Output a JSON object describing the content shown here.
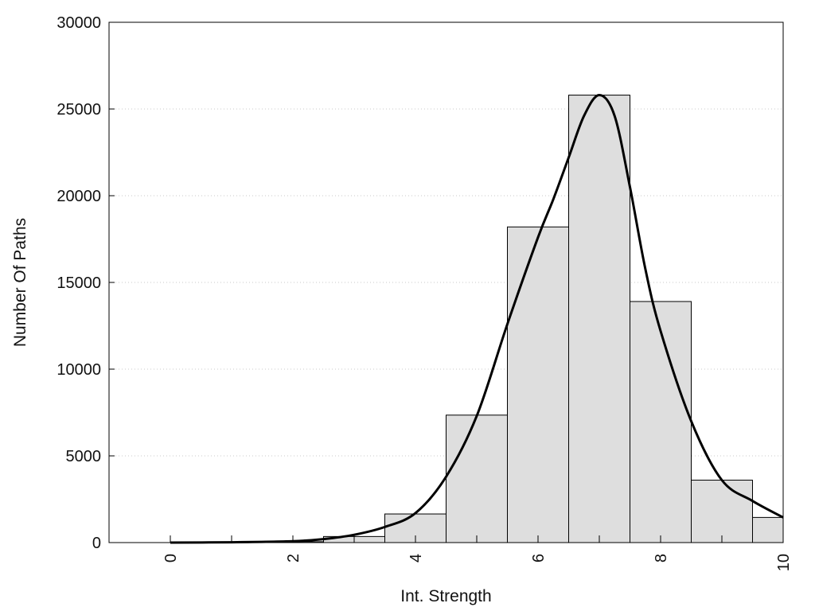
{
  "chart_data": {
    "type": "bar",
    "title": "",
    "xlabel": "Int. Strength",
    "ylabel": "Number Of Paths",
    "xlim": [
      -1,
      10
    ],
    "ylim": [
      0,
      30000
    ],
    "x_ticks": [
      0,
      2,
      4,
      6,
      8,
      10
    ],
    "x_tick_labels": [
      "0",
      "2",
      "4",
      "6",
      "8",
      "10"
    ],
    "y_ticks": [
      0,
      5000,
      10000,
      15000,
      20000,
      25000,
      30000
    ],
    "y_tick_labels": [
      "0",
      "5000",
      "10000",
      "15000",
      "20000",
      "25000",
      "30000"
    ],
    "grid": "horizontal dotted",
    "bar_width": 1,
    "bars": [
      {
        "x": 0,
        "value": 0
      },
      {
        "x": 1,
        "value": 0
      },
      {
        "x": 2,
        "value": 50
      },
      {
        "x": 3,
        "value": 350
      },
      {
        "x": 4,
        "value": 1650
      },
      {
        "x": 5,
        "value": 7350
      },
      {
        "x": 6,
        "value": 18200
      },
      {
        "x": 7,
        "value": 25800
      },
      {
        "x": 8,
        "value": 13900
      },
      {
        "x": 9,
        "value": 3600
      },
      {
        "x": 10,
        "value": 1450
      }
    ],
    "density_curve": {
      "x": [
        0,
        1,
        2,
        2.5,
        3,
        3.5,
        4,
        4.5,
        5,
        5.5,
        6,
        6.25,
        6.5,
        6.75,
        7,
        7.25,
        7.5,
        7.75,
        8,
        8.5,
        9,
        9.5,
        10
      ],
      "y": [
        0,
        20,
        80,
        200,
        450,
        900,
        1700,
        3800,
        7300,
        12600,
        17600,
        19800,
        22200,
        24600,
        25800,
        24600,
        20500,
        15800,
        12200,
        7000,
        3600,
        2400,
        1450
      ]
    },
    "colors": {
      "bar_fill": "#dedede",
      "bar_stroke": "#000000",
      "curve": "#000000",
      "grid": "#c8c8c8"
    }
  }
}
